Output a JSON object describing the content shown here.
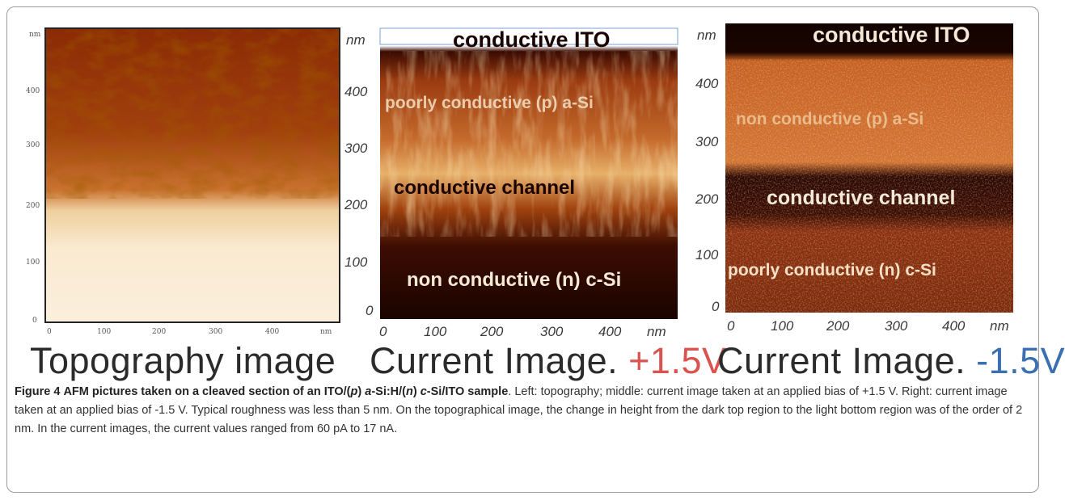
{
  "panels": {
    "topography": {
      "label": "Topography image",
      "y_ticks": [
        "nm",
        "400",
        "300",
        "200",
        "100",
        "0"
      ],
      "x_ticks": [
        "0",
        "100",
        "200",
        "300",
        "400",
        "nm"
      ]
    },
    "current_pos": {
      "label_prefix": "Current Image. ",
      "label_bias": "+1.5V",
      "bias_color": "#d9534f",
      "y_ticks": [
        "nm",
        "400",
        "300",
        "200",
        "100",
        "0"
      ],
      "x_ticks": [
        "0",
        "100",
        "200",
        "300",
        "400",
        "nm"
      ],
      "regions": {
        "ito": "conductive ITO",
        "p_layer": "poorly conductive (p) a-Si",
        "channel": "conductive channel",
        "n_layer": "non conductive (n) c-Si"
      }
    },
    "current_neg": {
      "label_prefix": "Current Image. ",
      "label_bias": "-1.5V",
      "bias_color": "#3a6fb0",
      "y_ticks": [
        "nm",
        "400",
        "300",
        "200",
        "100",
        "0"
      ],
      "x_ticks": [
        "0",
        "100",
        "200",
        "300",
        "400",
        "nm"
      ],
      "regions": {
        "ito": "conductive ITO",
        "p_layer": "non conductive (p) a-Si",
        "channel": "conductive channel",
        "n_layer": "poorly conductive (n) c-Si"
      }
    }
  },
  "caption": {
    "figure_label": "Figure 4",
    "title_1": "AFM pictures taken on a cleaved section of an ITO/(",
    "title_p": "p",
    "title_2": ") ",
    "title_a": "a",
    "title_3": "-Si:H/(",
    "title_n": "n",
    "title_4": ") ",
    "title_c": "c",
    "title_5": "-Si/ITO sample",
    "body": ". Left: topography; middle: current image taken at an applied bias of +1.5 V. Right: current image taken at an applied bias of -1.5 V. Typical roughness was less than 5 nm. On the topographical image, the change in height from the dark top region to the light bottom region was of the order of 2 nm. In the current images, the current values ranged from 60 pA to 17 nA."
  }
}
